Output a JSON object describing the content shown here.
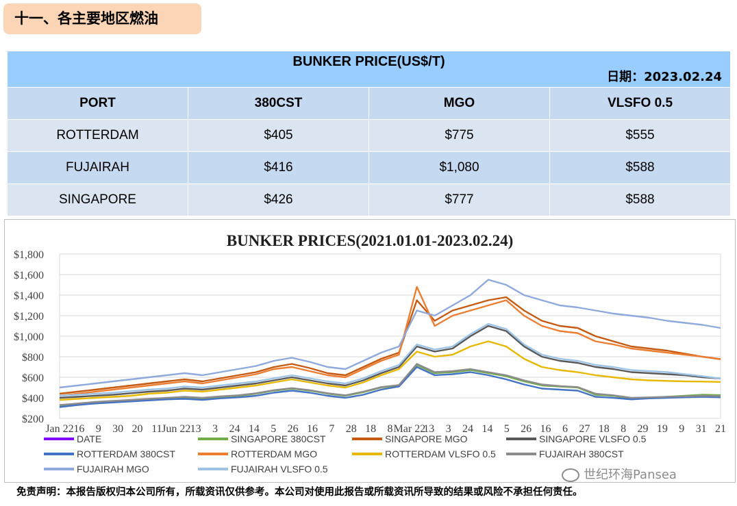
{
  "section_title": "十一、各主要地区燃油",
  "table": {
    "title": "BUNKER PRICE(US$/T)",
    "date_label": "日期：2023.02.24",
    "headers": [
      "PORT",
      "380CST",
      "MGO",
      "VLSFO 0.5"
    ],
    "rows": [
      [
        "ROTTERDAM",
        "$405",
        "$775",
        "$555"
      ],
      [
        "FUJAIRAH",
        "$416",
        "$1,080",
        "$588"
      ],
      [
        "SINGAPORE",
        "$426",
        "$777",
        "$588"
      ]
    ]
  },
  "chart_data": {
    "type": "line",
    "title": "BUNKER PRICES(2021.01.01-2023.02.24)",
    "ylim": [
      200,
      1800
    ],
    "y_ticks": [
      "$200",
      "$400",
      "$600",
      "$800",
      "$1,000",
      "$1,200",
      "$1,400",
      "$1,600",
      "$1,800"
    ],
    "x_tick_labels": [
      "Jan 22",
      "16",
      "9",
      "30",
      "20",
      "11",
      "Jun 22",
      "13",
      "3",
      "24",
      "14",
      "5",
      "26",
      "16",
      "7",
      "28",
      "18",
      "8",
      "Mar 22",
      "13",
      "3",
      "24",
      "14",
      "5",
      "26",
      "16",
      "6",
      "27",
      "18",
      "8",
      "29",
      "19",
      "9",
      "31",
      "21"
    ],
    "legend_position": "bottom",
    "grid": true,
    "series": [
      {
        "name": "DATE",
        "color": "#7f00ff",
        "values": []
      },
      {
        "name": "SINGAPORE 380CST",
        "color": "#70ad47",
        "values": [
          325,
          340,
          350,
          365,
          375,
          385,
          395,
          405,
          395,
          410,
          420,
          440,
          470,
          490,
          470,
          440,
          420,
          455,
          500,
          520,
          720,
          640,
          650,
          670,
          640,
          610,
          560,
          520,
          510,
          500,
          430,
          420,
          390,
          400,
          410,
          420,
          430,
          426
        ]
      },
      {
        "name": "SINGAPORE MGO",
        "color": "#c55a11",
        "values": [
          440,
          460,
          480,
          500,
          520,
          540,
          560,
          580,
          560,
          590,
          620,
          650,
          700,
          730,
          690,
          640,
          620,
          700,
          780,
          840,
          1350,
          1150,
          1250,
          1300,
          1350,
          1380,
          1250,
          1150,
          1100,
          1080,
          1000,
          950,
          900,
          880,
          860,
          830,
          800,
          777
        ]
      },
      {
        "name": "SINGAPORE VLSFO 0.5",
        "color": "#595959",
        "values": [
          400,
          410,
          420,
          430,
          445,
          460,
          470,
          490,
          480,
          500,
          520,
          540,
          570,
          600,
          570,
          540,
          520,
          570,
          640,
          700,
          900,
          850,
          880,
          1000,
          1100,
          1050,
          900,
          800,
          760,
          740,
          700,
          680,
          650,
          640,
          630,
          620,
          600,
          588
        ]
      },
      {
        "name": "ROTTERDAM 380CST",
        "color": "#4472c4",
        "values": [
          310,
          330,
          345,
          355,
          365,
          375,
          385,
          390,
          380,
          395,
          405,
          420,
          450,
          470,
          450,
          420,
          400,
          430,
          480,
          510,
          700,
          620,
          630,
          650,
          620,
          580,
          530,
          490,
          480,
          470,
          410,
          400,
          385,
          395,
          400,
          405,
          410,
          405
        ]
      },
      {
        "name": "ROTTERDAM MGO",
        "color": "#ed7d31",
        "values": [
          420,
          440,
          460,
          480,
          500,
          520,
          540,
          560,
          540,
          570,
          600,
          630,
          680,
          700,
          660,
          620,
          600,
          680,
          760,
          820,
          1480,
          1100,
          1200,
          1250,
          1300,
          1350,
          1200,
          1100,
          1050,
          1030,
          950,
          920,
          880,
          860,
          840,
          820,
          800,
          775
        ]
      },
      {
        "name": "ROTTERDAM VLSFO 0.5",
        "color": "#e6b800",
        "values": [
          380,
          390,
          400,
          410,
          420,
          440,
          450,
          470,
          460,
          480,
          500,
          520,
          550,
          580,
          550,
          520,
          500,
          550,
          620,
          680,
          850,
          800,
          820,
          900,
          950,
          900,
          780,
          700,
          670,
          650,
          620,
          600,
          580,
          570,
          565,
          560,
          558,
          555
        ]
      },
      {
        "name": "FUJAIRAH  380CST",
        "color": "#8c8c8c",
        "values": [
          330,
          345,
          360,
          370,
          380,
          390,
          400,
          410,
          400,
          415,
          425,
          445,
          475,
          495,
          475,
          445,
          425,
          460,
          505,
          525,
          730,
          650,
          660,
          680,
          650,
          620,
          570,
          530,
          515,
          505,
          440,
          425,
          400,
          405,
          410,
          415,
          420,
          416
        ]
      },
      {
        "name": "FUJAIRAH MGO",
        "color": "#8ea9db",
        "values": [
          500,
          520,
          540,
          560,
          580,
          600,
          620,
          640,
          620,
          650,
          680,
          710,
          760,
          790,
          750,
          700,
          680,
          760,
          840,
          900,
          1250,
          1200,
          1300,
          1400,
          1550,
          1500,
          1400,
          1350,
          1300,
          1280,
          1250,
          1220,
          1200,
          1180,
          1150,
          1130,
          1110,
          1080
        ]
      },
      {
        "name": "FUJAIRAH VLSFO 0.5",
        "color": "#9dc3e6",
        "values": [
          420,
          430,
          440,
          450,
          465,
          480,
          490,
          510,
          500,
          520,
          540,
          560,
          590,
          620,
          590,
          560,
          540,
          590,
          660,
          720,
          920,
          870,
          900,
          1020,
          1120,
          1070,
          920,
          820,
          780,
          760,
          720,
          700,
          670,
          660,
          650,
          630,
          610,
          588
        ]
      }
    ]
  },
  "disclaimer": "免责声明：本报告版权归本公司所有，所载资讯仅供参考。本公司对使用此报告或所载资讯所导致的结果或风险不承担任何责任。",
  "watermark": "世纪环海Pansea"
}
